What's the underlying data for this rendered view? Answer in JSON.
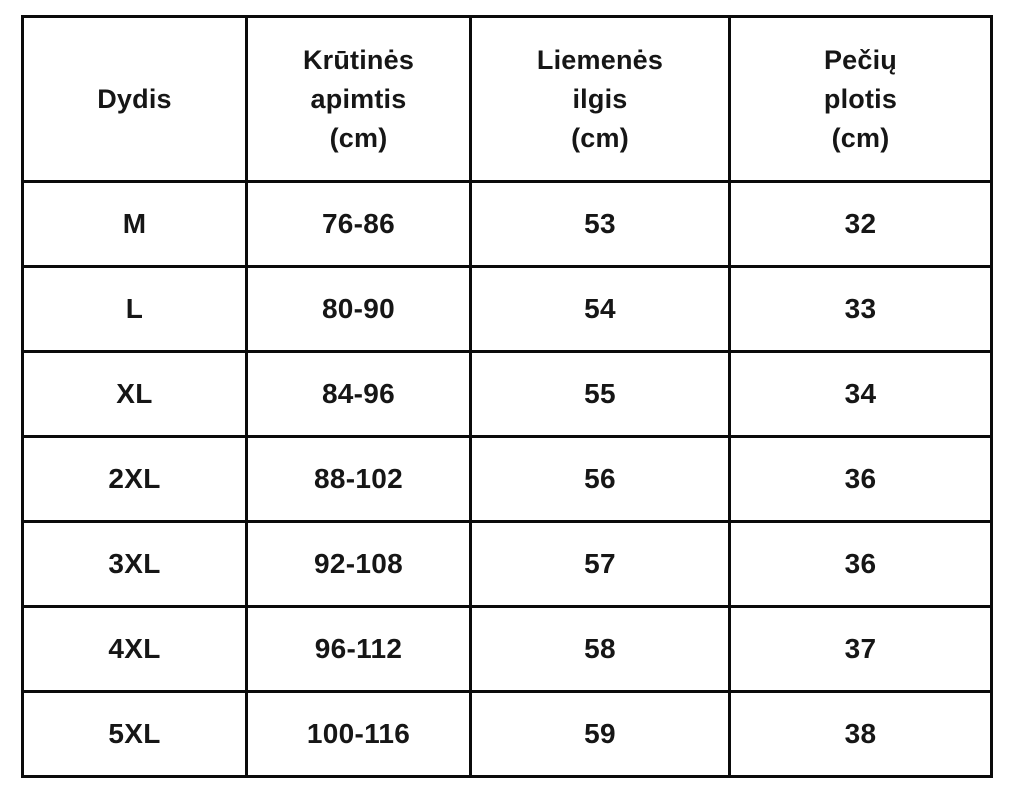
{
  "chart_data": {
    "type": "table",
    "columns": [
      "Dydis",
      "Krūtinės apimtis (cm)",
      "Liemenės ilgis (cm)",
      "Pečių plotis (cm)"
    ],
    "rows": [
      [
        "M",
        "76-86",
        "53",
        "32"
      ],
      [
        "L",
        "80-90",
        "54",
        "33"
      ],
      [
        "XL",
        "84-96",
        "55",
        "34"
      ],
      [
        "2XL",
        "88-102",
        "56",
        "36"
      ],
      [
        "3XL",
        "92-108",
        "57",
        "36"
      ],
      [
        "4XL",
        "96-112",
        "58",
        "37"
      ],
      [
        "5XL",
        "100-116",
        "59",
        "38"
      ]
    ]
  },
  "table": {
    "header_display": [
      "Dydis",
      "Krūtinės\napimtis\n(cm)",
      "Liemenės\nilgis\n(cm)",
      "Pečių\nplotis\n(cm)"
    ]
  },
  "colors": {
    "border": "#0b0b0b",
    "text": "#161616",
    "background": "#ffffff"
  }
}
